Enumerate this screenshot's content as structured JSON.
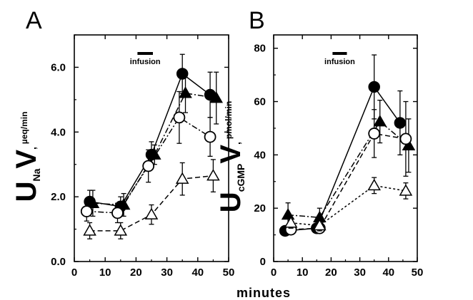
{
  "figure": {
    "xlabel": "minutes"
  },
  "chart_data": [
    {
      "panel": "A",
      "type": "line",
      "ylabel": {
        "main": "U",
        "sub": "Na",
        "post": "V",
        "sep": ",",
        "unit": "µeq/min"
      },
      "annotation": "infusion",
      "infusion_range": [
        20,
        25
      ],
      "xlim": [
        0,
        50
      ],
      "ylim": [
        0.0,
        7.0
      ],
      "xticks": [
        "0",
        "10",
        "20",
        "30",
        "40",
        "50"
      ],
      "xtick_values": [
        0,
        10,
        20,
        30,
        40,
        50
      ],
      "yticks": [
        "0.0",
        "2.0",
        "4.0",
        "6.0"
      ],
      "ytick_values": [
        0,
        2,
        4,
        6
      ],
      "grid": false,
      "series": [
        {
          "marker": "filled-circle",
          "line": "solid",
          "x": [
            5,
            15,
            25,
            35,
            44
          ],
          "y": [
            1.85,
            1.7,
            3.3,
            5.8,
            5.15
          ],
          "err": [
            0.35,
            0.3,
            0.4,
            0.6,
            0.7
          ]
        },
        {
          "marker": "filled-triangle",
          "line": "dashdot",
          "x": [
            6,
            16,
            26,
            36,
            46
          ],
          "y": [
            1.8,
            1.75,
            3.3,
            5.2,
            5.05
          ],
          "err": [
            0.4,
            0.35,
            0.3,
            0.6,
            0.8
          ]
        },
        {
          "marker": "open-circle",
          "line": "dashdot",
          "x": [
            4,
            14,
            24,
            34,
            44
          ],
          "y": [
            1.55,
            1.5,
            2.95,
            4.45,
            3.85
          ],
          "err": [
            0.3,
            0.3,
            0.5,
            0.8,
            0.6
          ]
        },
        {
          "marker": "open-triangle",
          "line": "dashed",
          "x": [
            5,
            15,
            25,
            35,
            45
          ],
          "y": [
            0.95,
            0.95,
            1.45,
            2.55,
            2.65
          ],
          "err": [
            0.25,
            0.25,
            0.3,
            0.5,
            0.5
          ]
        }
      ]
    },
    {
      "panel": "B",
      "type": "line",
      "ylabel": {
        "main": "U",
        "sub": "cGMP",
        "post": "V",
        "sep": ",",
        "unit": "pmol/min"
      },
      "annotation": "infusion",
      "infusion_range": [
        20,
        25
      ],
      "xlim": [
        0,
        50
      ],
      "ylim": [
        0,
        85
      ],
      "xticks": [
        "0",
        "10",
        "20",
        "30",
        "40",
        "50"
      ],
      "xtick_values": [
        0,
        10,
        20,
        30,
        40,
        50
      ],
      "yticks": [
        "0",
        "20",
        "40",
        "60",
        "80"
      ],
      "ytick_values": [
        0,
        20,
        40,
        60,
        80
      ],
      "grid": false,
      "series": [
        {
          "marker": "filled-circle",
          "line": "solid",
          "x": [
            4,
            15,
            35,
            44
          ],
          "y": [
            11.5,
            12.5,
            65.5,
            52
          ],
          "err": [
            1.5,
            1.5,
            12,
            12
          ]
        },
        {
          "marker": "filled-triangle",
          "line": "dashdot",
          "x": [
            5,
            16,
            37,
            47
          ],
          "y": [
            17.5,
            16.5,
            52.5,
            43.5
          ],
          "err": [
            4.5,
            3.5,
            8,
            10
          ]
        },
        {
          "marker": "open-circle",
          "line": "dashed",
          "x": [
            6,
            16,
            35,
            46
          ],
          "y": [
            12,
            12.5,
            48,
            46
          ],
          "err": [
            1.5,
            1.5,
            9,
            14
          ]
        },
        {
          "marker": "open-triangle",
          "line": "dotted",
          "x": [
            6,
            16,
            35,
            46
          ],
          "y": [
            14.5,
            13.5,
            28.5,
            26.5
          ],
          "err": [
            2,
            2,
            3,
            3
          ]
        }
      ]
    }
  ]
}
